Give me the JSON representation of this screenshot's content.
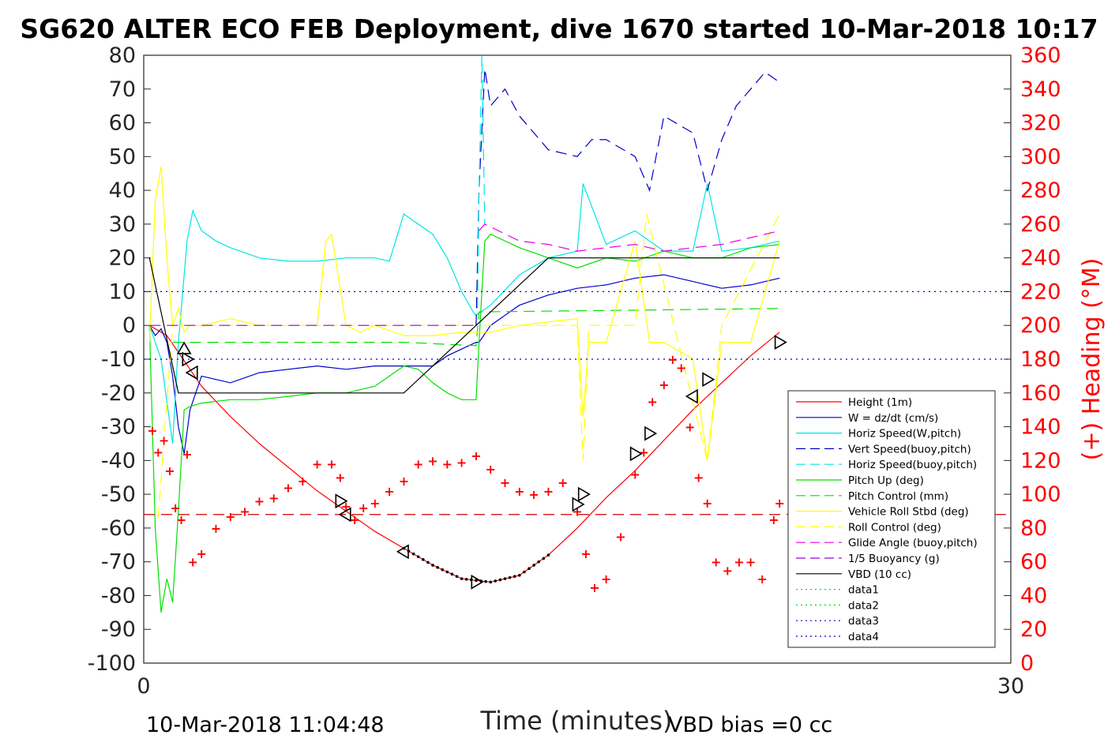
{
  "chart_data": {
    "type": "line",
    "title": "SG620 ALTER ECO FEB Deployment, dive 1670 started 10-Mar-2018 10:17",
    "xlabel": "Time (minutes)",
    "ylabel": "",
    "y2label": "(+) Heading (°M)",
    "xlim": [
      0,
      30
    ],
    "ylim": [
      -100,
      80
    ],
    "y2lim": [
      0,
      360
    ],
    "x_ticks": [
      "0",
      "30"
    ],
    "y_ticks": [
      "80",
      "70",
      "60",
      "50",
      "40",
      "30",
      "20",
      "10",
      "0",
      "-10",
      "-20",
      "-30",
      "-40",
      "-50",
      "-60",
      "-70",
      "-80",
      "-90",
      "-100"
    ],
    "y2_ticks": [
      "360",
      "340",
      "320",
      "300",
      "280",
      "260",
      "240",
      "220",
      "200",
      "180",
      "160",
      "140",
      "120",
      "100",
      "80",
      "60",
      "40",
      "20",
      "0"
    ],
    "footer_left": "10-Mar-2018 11:04:48",
    "footer_right": "VBD bias =0 cc",
    "legend_position": "lower-right",
    "grid": false,
    "series": [
      {
        "name": "Height (1m)",
        "color": "#ff0000",
        "dash": "solid",
        "x": [
          0.2,
          0.8,
          1.2,
          1.6,
          2.0,
          3.0,
          4.0,
          5.0,
          6.0,
          7.0,
          8.0,
          9.0,
          10.0,
          11.0,
          12.0,
          13.0,
          14.0,
          15.0,
          16.0,
          17.0,
          18.0,
          19.0,
          20.0,
          21.0,
          22.0
        ],
        "y": [
          0,
          -3,
          -8,
          -13,
          -18,
          -27,
          -35,
          -42,
          -49,
          -55,
          -61,
          -66,
          -71,
          -75,
          -76,
          -74,
          -68,
          -60,
          -51,
          -43,
          -34,
          -25,
          -17,
          -9,
          -2
        ]
      },
      {
        "name": "W = dz/dt (cm/s)",
        "color": "#0000cc",
        "dash": "solid",
        "x": [
          0.2,
          0.4,
          0.6,
          0.8,
          1.0,
          1.2,
          1.4,
          1.6,
          2.0,
          2.5,
          3.0,
          4.0,
          5.0,
          6.0,
          7.0,
          8.0,
          9.0,
          9.5,
          10.0,
          10.5,
          11.0,
          11.5,
          11.6,
          12.0,
          13.0,
          14.0,
          15.0,
          16.0,
          17.0,
          18.0,
          19.0,
          20.0,
          21.0,
          22.0
        ],
        "y": [
          0,
          -3,
          -1,
          -5,
          -15,
          -30,
          -38,
          -25,
          -15,
          -16,
          -17,
          -14,
          -13,
          -12,
          -13,
          -12,
          -12,
          -12,
          -12,
          -9,
          -7,
          -5,
          -5,
          0,
          6,
          9,
          11,
          12,
          14,
          15,
          13,
          11,
          12,
          14
        ]
      },
      {
        "name": "Horiz Speed(W,pitch)",
        "color": "#00e5e5",
        "dash": "solid",
        "x": [
          0.2,
          0.6,
          1.0,
          1.2,
          1.5,
          1.7,
          2.0,
          2.5,
          3.0,
          4.0,
          5.0,
          6.0,
          7.0,
          8.0,
          8.5,
          9.0,
          10.0,
          10.5,
          11.0,
          11.4,
          11.5,
          12.0,
          13.0,
          14.0,
          15.0,
          15.2,
          16.0,
          17.0,
          18.0,
          19.0,
          19.5,
          20.0,
          21.0,
          22.0
        ],
        "y": [
          0,
          -10,
          -35,
          -5,
          25,
          34,
          28,
          25,
          23,
          20,
          19,
          19,
          20,
          20,
          19,
          33,
          27,
          20,
          10,
          4,
          3,
          6,
          15,
          20,
          22,
          42,
          24,
          28,
          22,
          22,
          42,
          22,
          23,
          25
        ]
      },
      {
        "name": "Vert Speed(buoy,pitch)",
        "color": "#0000cc",
        "dash": "dashed",
        "x": [
          11.5,
          11.6,
          11.8,
          12.0,
          12.5,
          13.0,
          14.0,
          15.0,
          15.5,
          16.0,
          17.0,
          17.5,
          18.0,
          19.0,
          19.5,
          20.0,
          20.5,
          21.0,
          21.5,
          22.0
        ],
        "y": [
          0,
          40,
          76,
          65,
          70,
          62,
          52,
          50,
          55,
          55,
          50,
          40,
          62,
          57,
          40,
          55,
          65,
          70,
          75,
          72
        ]
      },
      {
        "name": "Horiz Speed(buoy,pitch)",
        "color": "#00e5e5",
        "dash": "dashed",
        "x": [
          11.55,
          11.6,
          11.7,
          11.8
        ],
        "y": [
          5,
          40,
          80,
          30
        ]
      },
      {
        "name": "Pitch Up (deg)",
        "color": "#00e000",
        "dash": "solid",
        "x": [
          0.2,
          0.4,
          0.6,
          0.8,
          1.0,
          1.2,
          1.4,
          1.6,
          2.0,
          3.0,
          4.0,
          5.0,
          6.0,
          7.0,
          8.0,
          9.0,
          9.5,
          10.0,
          10.5,
          11.0,
          11.5,
          11.6,
          11.8,
          12.0,
          13.0,
          14.0,
          15.0,
          16.0,
          17.0,
          18.0,
          19.0,
          20.0,
          21.0,
          22.0
        ],
        "y": [
          0,
          -60,
          -85,
          -75,
          -82,
          -55,
          -25,
          -24,
          -23,
          -22,
          -22,
          -21,
          -20,
          -20,
          -18,
          -12,
          -13,
          -17,
          -20,
          -22,
          -22,
          -5,
          25,
          27,
          23,
          20,
          17,
          20,
          19,
          22,
          20,
          20,
          23,
          24
        ]
      },
      {
        "name": "Pitch Control (mm)",
        "color": "#00e000",
        "dash": "dashed",
        "x": [
          1.0,
          9.0,
          11.5,
          11.6,
          22.0
        ],
        "y": [
          -5,
          -5,
          -6,
          4,
          5
        ]
      },
      {
        "name": "Vehicle Roll Stbd (deg)",
        "color": "#ffff00",
        "dash": "solid",
        "x": [
          0.2,
          0.4,
          0.6,
          0.8,
          1.0,
          1.2,
          1.4,
          1.6,
          2.0,
          3.0,
          4.0,
          5.0,
          6.0,
          6.3,
          6.5,
          7.0,
          7.5,
          8.0,
          9.0,
          10.0,
          11.0,
          12.0,
          13.0,
          14.0,
          15.0,
          15.2,
          15.4,
          16.0,
          17.0,
          17.5,
          18.0,
          19.0,
          19.5,
          20.0,
          21.0,
          22.0
        ],
        "y": [
          -5,
          37,
          47,
          20,
          0,
          5,
          -2,
          0,
          0,
          2,
          0,
          0,
          0,
          25,
          27,
          0,
          -2,
          0,
          -3,
          -3,
          -2,
          -2,
          0,
          1,
          2,
          -27,
          -5,
          -5,
          25,
          -5,
          -5,
          -10,
          -40,
          -5,
          -5,
          25
        ]
      },
      {
        "name": "Roll Control (deg)",
        "color": "#ffff00",
        "dash": "dashed",
        "x": [
          0.5,
          1.0,
          15.0,
          15.2,
          15.4,
          17.0,
          17.4,
          19.5,
          20.0,
          22.0
        ],
        "y": [
          -57,
          0,
          0,
          -40,
          0,
          0,
          33,
          -40,
          0,
          33
        ]
      },
      {
        "name": "Glide Angle (buoy,pitch)",
        "color": "#e500e5",
        "dash": "dashed",
        "x": [
          11.6,
          11.8,
          13.0,
          14.0,
          15.0,
          16.0,
          17.0,
          18.0,
          19.0,
          20.0,
          21.0,
          22.0
        ],
        "y": [
          28,
          30,
          25,
          24,
          22,
          23,
          24,
          22,
          23,
          24,
          26,
          28
        ]
      },
      {
        "name": "1/5 Buoyancy (g)",
        "color": "#9900e5",
        "dash": "dashed",
        "x": [
          0.2,
          11.5
        ],
        "y": [
          0,
          0
        ]
      },
      {
        "name": "VBD (10 cc)",
        "color": "#000000",
        "dash": "solid",
        "x": [
          0.2,
          1.2,
          9.0,
          14.0,
          22.0
        ],
        "y": [
          20,
          -20,
          -20,
          20,
          20
        ]
      },
      {
        "name": "data1",
        "color": "#00e000",
        "dash": "dotted",
        "x": [],
        "y": []
      },
      {
        "name": "data2",
        "color": "#00e000",
        "dash": "dotted",
        "x": [],
        "y": []
      },
      {
        "name": "data3",
        "color": "#0000cc",
        "dash": "dotted",
        "x": [
          0,
          30
        ],
        "y": [
          10,
          10
        ]
      },
      {
        "name": "data4",
        "color": "#0000cc",
        "dash": "dotted",
        "x": [
          0,
          30
        ],
        "y": [
          -10,
          -10
        ]
      }
    ],
    "heading_dashed_line": {
      "color": "#cc0000",
      "y2": 88
    },
    "heading": {
      "color": "#ff0000",
      "x": [
        0.3,
        0.5,
        0.7,
        0.9,
        1.1,
        1.3,
        1.5,
        1.7,
        2.0,
        2.5,
        3.0,
        3.5,
        4.0,
        4.5,
        5.0,
        5.5,
        6.0,
        6.5,
        6.8,
        7.0,
        7.3,
        7.6,
        8.0,
        8.5,
        9.0,
        9.5,
        10.0,
        10.5,
        11.0,
        11.5,
        12.0,
        12.5,
        13.0,
        13.5,
        14.0,
        14.5,
        15.0,
        15.3,
        15.6,
        16.0,
        16.5,
        17.0,
        17.3,
        17.6,
        18.0,
        18.3,
        18.6,
        18.9,
        19.2,
        19.5,
        19.8,
        20.2,
        20.6,
        21.0,
        21.4,
        21.8,
        22.0
      ],
      "y2": [
        138,
        125,
        132,
        114,
        92,
        85,
        124,
        60,
        65,
        80,
        87,
        90,
        96,
        98,
        104,
        108,
        118,
        118,
        110,
        93,
        85,
        92,
        95,
        102,
        108,
        118,
        120,
        118,
        119,
        123,
        115,
        107,
        102,
        100,
        102,
        107,
        90,
        65,
        45,
        50,
        75,
        112,
        125,
        155,
        165,
        180,
        175,
        140,
        110,
        95,
        60,
        55,
        60,
        60,
        50,
        85,
        95
      ]
    },
    "markers": {
      "x": [
        1.4,
        1.5,
        1.7,
        6.8,
        7.0,
        9.0,
        11.5,
        15.0,
        15.2,
        17.0,
        17.5,
        19.0,
        19.5,
        22.0
      ],
      "y": [
        -7,
        -10,
        -14,
        -52,
        -56,
        -67,
        -76,
        -53,
        -50,
        -38,
        -32,
        -21,
        -16,
        -5
      ],
      "direction": [
        "up",
        "right",
        "left",
        "right",
        "left",
        "left",
        "right",
        "right",
        "right",
        "right",
        "right",
        "left",
        "right",
        "right"
      ]
    },
    "dive_segment": {
      "x0": 9.0,
      "x1": 14.0
    }
  }
}
